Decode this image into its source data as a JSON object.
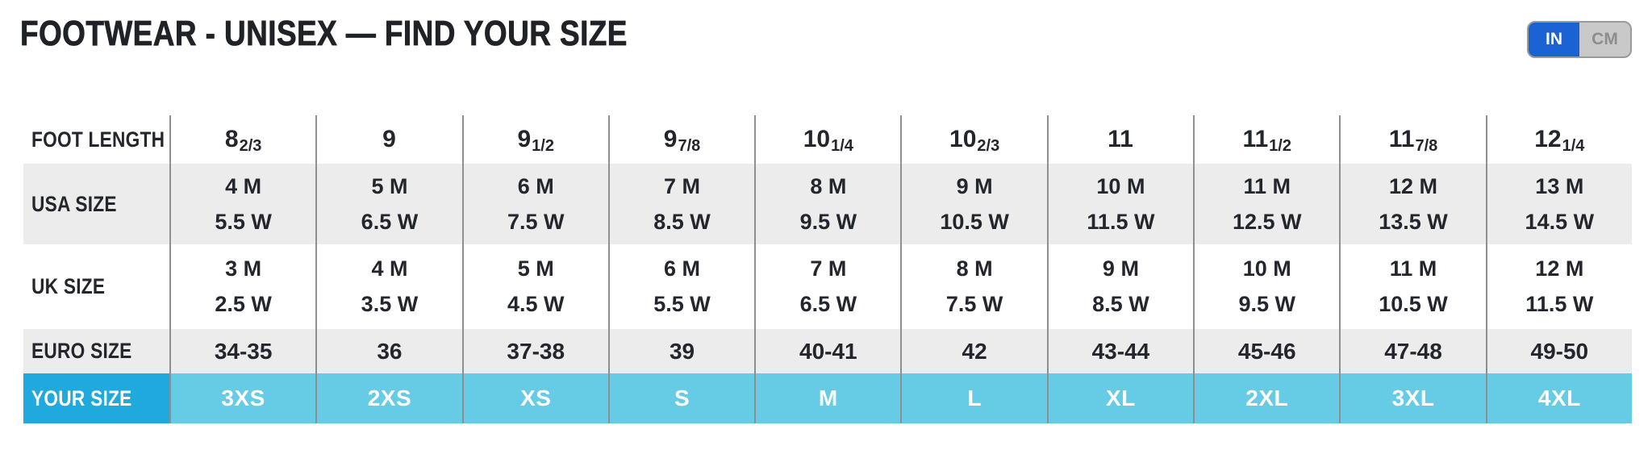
{
  "page": {
    "title": "FOOTWEAR - UNISEX — FIND YOUR SIZE"
  },
  "unit_toggle": {
    "options": [
      {
        "label": "IN",
        "selected": true
      },
      {
        "label": "CM",
        "selected": false
      }
    ]
  },
  "colors": {
    "highlight_row_label_bg": "#1fa9dc",
    "highlight_row_cell_bg": "#66cbe5",
    "alt_row_bg": "#ececec",
    "separator": "#8f8f8f",
    "toggle_active_bg": "#1b63d2",
    "toggle_inactive_bg": "#c9c9c9",
    "text_dark": "#23262c"
  },
  "table": {
    "rows": [
      {
        "label": "FOOT LENGTH",
        "type": "fraction",
        "values": [
          {
            "main": "8",
            "frac": "2/3"
          },
          {
            "main": "9",
            "frac": ""
          },
          {
            "main": "9",
            "frac": "1/2"
          },
          {
            "main": "9",
            "frac": "7/8"
          },
          {
            "main": "10",
            "frac": "1/4"
          },
          {
            "main": "10",
            "frac": "2/3"
          },
          {
            "main": "11",
            "frac": ""
          },
          {
            "main": "11",
            "frac": "1/2"
          },
          {
            "main": "11",
            "frac": "7/8"
          },
          {
            "main": "12",
            "frac": "1/4"
          }
        ]
      },
      {
        "label": "USA SIZE",
        "type": "twoline",
        "values": [
          {
            "m": "4 M",
            "w": "5.5 W"
          },
          {
            "m": "5 M",
            "w": "6.5 W"
          },
          {
            "m": "6 M",
            "w": "7.5 W"
          },
          {
            "m": "7 M",
            "w": "8.5 W"
          },
          {
            "m": "8 M",
            "w": "9.5 W"
          },
          {
            "m": "9 M",
            "w": "10.5 W"
          },
          {
            "m": "10 M",
            "w": "11.5 W"
          },
          {
            "m": "11 M",
            "w": "12.5 W"
          },
          {
            "m": "12 M",
            "w": "13.5 W"
          },
          {
            "m": "13 M",
            "w": "14.5 W"
          }
        ]
      },
      {
        "label": "UK SIZE",
        "type": "twoline",
        "values": [
          {
            "m": "3 M",
            "w": "2.5 W"
          },
          {
            "m": "4 M",
            "w": "3.5 W"
          },
          {
            "m": "5 M",
            "w": "4.5 W"
          },
          {
            "m": "6 M",
            "w": "5.5 W"
          },
          {
            "m": "7 M",
            "w": "6.5 W"
          },
          {
            "m": "8 M",
            "w": "7.5 W"
          },
          {
            "m": "9 M",
            "w": "8.5 W"
          },
          {
            "m": "10 M",
            "w": "9.5 W"
          },
          {
            "m": "11 M",
            "w": "10.5 W"
          },
          {
            "m": "12 M",
            "w": "11.5 W"
          }
        ]
      },
      {
        "label": "EURO SIZE",
        "type": "single",
        "values": [
          "34-35",
          "36",
          "37-38",
          "39",
          "40-41",
          "42",
          "43-44",
          "45-46",
          "47-48",
          "49-50"
        ]
      },
      {
        "label": "YOUR SIZE",
        "type": "highlight",
        "values": [
          "3XS",
          "2XS",
          "XS",
          "S",
          "M",
          "L",
          "XL",
          "2XL",
          "3XL",
          "4XL"
        ]
      }
    ]
  }
}
